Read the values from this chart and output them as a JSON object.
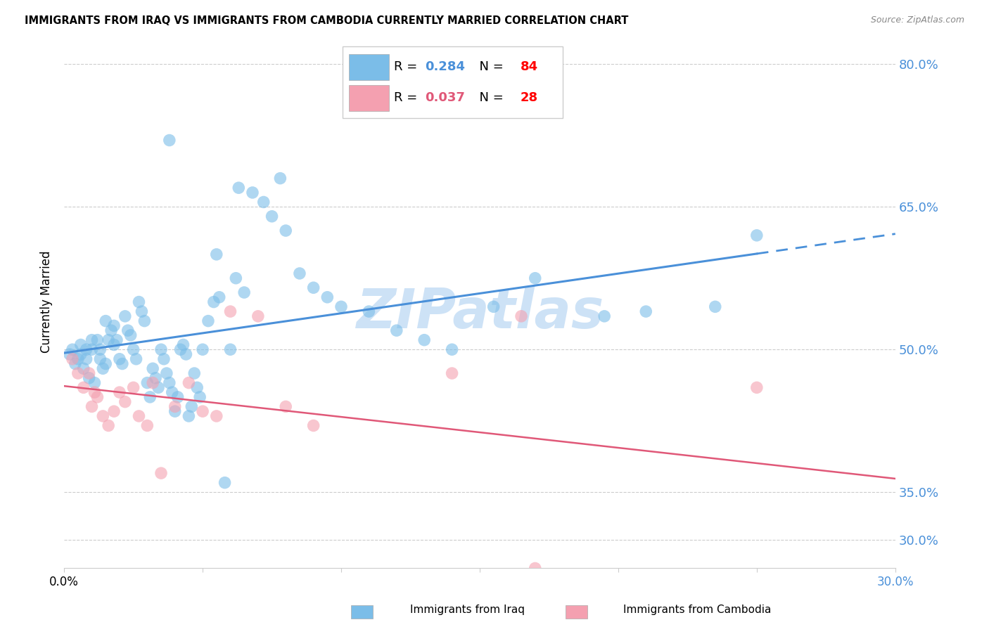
{
  "title": "IMMIGRANTS FROM IRAQ VS IMMIGRANTS FROM CAMBODIA CURRENTLY MARRIED CORRELATION CHART",
  "source": "Source: ZipAtlas.com",
  "ylabel": "Currently Married",
  "xlim": [
    0.0,
    0.3
  ],
  "ylim": [
    0.27,
    0.83
  ],
  "ytick_vals": [
    0.3,
    0.35,
    0.5,
    0.65,
    0.8
  ],
  "ytick_labels": [
    "30.0%",
    "35.0%",
    "50.0%",
    "65.0%",
    "80.0%"
  ],
  "xtick_positions": [
    0.0,
    0.05,
    0.1,
    0.15,
    0.2,
    0.25,
    0.3
  ],
  "xtick_labels": [
    "0.0%",
    "",
    "",
    "",
    "",
    "",
    "30.0%"
  ],
  "iraq_color": "#7bbde8",
  "iraq_color_line": "#4a90d9",
  "cambodia_color": "#f4a0b0",
  "cambodia_color_line": "#e05878",
  "iraq_R": 0.284,
  "iraq_N": 84,
  "cambodia_R": 0.037,
  "cambodia_N": 28,
  "tick_label_color_y": "#4a90d9",
  "watermark_color": "#c8dff5",
  "iraq_x": [
    0.002,
    0.003,
    0.004,
    0.005,
    0.006,
    0.006,
    0.007,
    0.008,
    0.008,
    0.009,
    0.01,
    0.01,
    0.011,
    0.012,
    0.013,
    0.013,
    0.014,
    0.015,
    0.015,
    0.016,
    0.017,
    0.018,
    0.018,
    0.019,
    0.02,
    0.021,
    0.022,
    0.023,
    0.024,
    0.025,
    0.026,
    0.027,
    0.028,
    0.029,
    0.03,
    0.031,
    0.032,
    0.033,
    0.034,
    0.035,
    0.036,
    0.037,
    0.038,
    0.039,
    0.04,
    0.041,
    0.042,
    0.043,
    0.044,
    0.045,
    0.046,
    0.047,
    0.048,
    0.049,
    0.05,
    0.052,
    0.054,
    0.056,
    0.058,
    0.06,
    0.062,
    0.065,
    0.068,
    0.072,
    0.075,
    0.08,
    0.085,
    0.09,
    0.095,
    0.1,
    0.11,
    0.12,
    0.13,
    0.14,
    0.155,
    0.17,
    0.195,
    0.21,
    0.235,
    0.25,
    0.038,
    0.055,
    0.063,
    0.078
  ],
  "iraq_y": [
    0.495,
    0.5,
    0.485,
    0.49,
    0.505,
    0.495,
    0.48,
    0.49,
    0.5,
    0.47,
    0.5,
    0.51,
    0.465,
    0.51,
    0.5,
    0.49,
    0.48,
    0.485,
    0.53,
    0.51,
    0.52,
    0.505,
    0.525,
    0.51,
    0.49,
    0.485,
    0.535,
    0.52,
    0.515,
    0.5,
    0.49,
    0.55,
    0.54,
    0.53,
    0.465,
    0.45,
    0.48,
    0.47,
    0.46,
    0.5,
    0.49,
    0.475,
    0.465,
    0.455,
    0.435,
    0.45,
    0.5,
    0.505,
    0.495,
    0.43,
    0.44,
    0.475,
    0.46,
    0.45,
    0.5,
    0.53,
    0.55,
    0.555,
    0.36,
    0.5,
    0.575,
    0.56,
    0.665,
    0.655,
    0.64,
    0.625,
    0.58,
    0.565,
    0.555,
    0.545,
    0.54,
    0.52,
    0.51,
    0.5,
    0.545,
    0.575,
    0.535,
    0.54,
    0.545,
    0.62,
    0.72,
    0.6,
    0.67,
    0.68
  ],
  "cambodia_x": [
    0.003,
    0.005,
    0.007,
    0.009,
    0.01,
    0.011,
    0.012,
    0.014,
    0.016,
    0.018,
    0.02,
    0.022,
    0.025,
    0.027,
    0.03,
    0.032,
    0.035,
    0.04,
    0.045,
    0.05,
    0.055,
    0.06,
    0.07,
    0.08,
    0.09,
    0.14,
    0.165,
    0.25
  ],
  "cambodia_y": [
    0.49,
    0.475,
    0.46,
    0.475,
    0.44,
    0.455,
    0.45,
    0.43,
    0.42,
    0.435,
    0.455,
    0.445,
    0.46,
    0.43,
    0.42,
    0.465,
    0.37,
    0.44,
    0.465,
    0.435,
    0.43,
    0.54,
    0.535,
    0.44,
    0.42,
    0.475,
    0.535,
    0.46
  ]
}
